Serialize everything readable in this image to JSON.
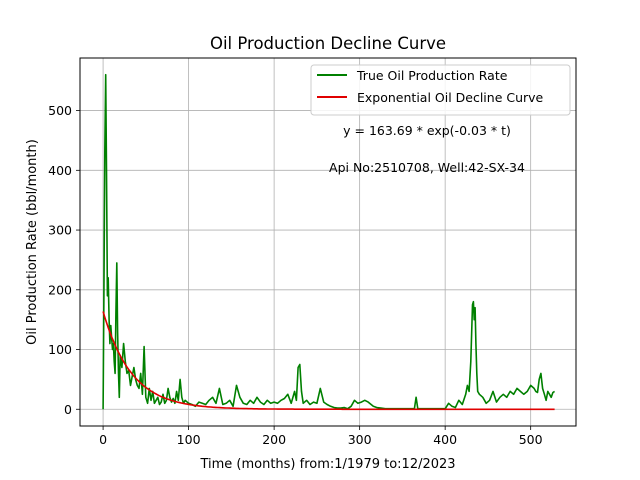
{
  "chart_data": {
    "type": "line",
    "title": "Oil Production Decline Curve",
    "xlabel": "Time (months) from:1/1979 to:12/2023",
    "ylabel": "Oil Production Rate (bbl/month)",
    "xlim": [
      -27,
      553
    ],
    "ylim": [
      -28,
      588
    ],
    "xticks": [
      0,
      100,
      200,
      300,
      400,
      500
    ],
    "yticks": [
      0,
      100,
      200,
      300,
      400,
      500
    ],
    "grid": true,
    "legend_position": "top-right",
    "annotations": [
      "y = 163.69 * exp(-0.03 * t)",
      "Api No:2510708, Well:42-SX-34"
    ],
    "series": [
      {
        "name": "True Oil Production Rate",
        "color": "#008000",
        "x": [
          0,
          1,
          2,
          3,
          4,
          5,
          6,
          7,
          8,
          9,
          10,
          11,
          12,
          13,
          14,
          15,
          16,
          17,
          18,
          19,
          20,
          22,
          24,
          26,
          28,
          30,
          32,
          34,
          36,
          38,
          40,
          42,
          44,
          46,
          48,
          50,
          52,
          54,
          56,
          58,
          60,
          62,
          64,
          66,
          68,
          70,
          72,
          74,
          76,
          78,
          80,
          82,
          84,
          86,
          88,
          90,
          92,
          94,
          96,
          100,
          104,
          108,
          112,
          116,
          120,
          124,
          128,
          132,
          136,
          140,
          144,
          148,
          152,
          156,
          160,
          164,
          168,
          172,
          176,
          180,
          184,
          188,
          192,
          196,
          200,
          204,
          208,
          212,
          216,
          220,
          224,
          226,
          228,
          230,
          232,
          234,
          238,
          242,
          246,
          250,
          254,
          258,
          262,
          266,
          270,
          274,
          278,
          282,
          286,
          290,
          294,
          298,
          302,
          306,
          310,
          316,
          320,
          330,
          340,
          350,
          360,
          364,
          366,
          368,
          372,
          380,
          390,
          400,
          404,
          408,
          412,
          416,
          420,
          424,
          426,
          428,
          430,
          432,
          433,
          434,
          435,
          436,
          437,
          438,
          440,
          444,
          448,
          452,
          456,
          460,
          464,
          468,
          472,
          476,
          480,
          484,
          488,
          492,
          496,
          500,
          504,
          506,
          508,
          510,
          512,
          514,
          516,
          518,
          520,
          522,
          524,
          526,
          528
        ],
        "y": [
          0,
          190,
          430,
          560,
          400,
          190,
          220,
          150,
          110,
          140,
          120,
          100,
          110,
          80,
          60,
          160,
          245,
          130,
          60,
          20,
          90,
          70,
          110,
          80,
          60,
          65,
          40,
          55,
          70,
          50,
          40,
          35,
          60,
          25,
          105,
          20,
          10,
          35,
          15,
          30,
          10,
          15,
          20,
          8,
          12,
          25,
          10,
          15,
          35,
          20,
          12,
          18,
          10,
          30,
          15,
          50,
          20,
          10,
          15,
          10,
          8,
          5,
          12,
          10,
          8,
          15,
          20,
          10,
          35,
          8,
          10,
          15,
          5,
          40,
          20,
          10,
          8,
          15,
          10,
          20,
          12,
          8,
          15,
          10,
          12,
          10,
          15,
          18,
          25,
          10,
          30,
          15,
          70,
          75,
          30,
          10,
          15,
          8,
          12,
          10,
          35,
          12,
          8,
          5,
          3,
          2,
          2,
          3,
          1,
          5,
          15,
          10,
          12,
          15,
          12,
          5,
          3,
          1,
          1,
          1,
          1,
          1,
          20,
          1,
          1,
          1,
          1,
          1,
          10,
          5,
          3,
          15,
          8,
          25,
          40,
          30,
          80,
          175,
          180,
          150,
          170,
          110,
          60,
          30,
          25,
          20,
          10,
          15,
          30,
          12,
          20,
          25,
          20,
          30,
          25,
          35,
          30,
          25,
          30,
          40,
          35,
          30,
          28,
          50,
          60,
          35,
          25,
          15,
          30,
          25,
          20,
          28,
          30
        ]
      },
      {
        "name": "Exponential Oil Decline Curve",
        "color": "#e00000",
        "function": {
          "a": 163.69,
          "b": -0.03,
          "t_start": 0,
          "t_end": 528
        }
      }
    ]
  }
}
